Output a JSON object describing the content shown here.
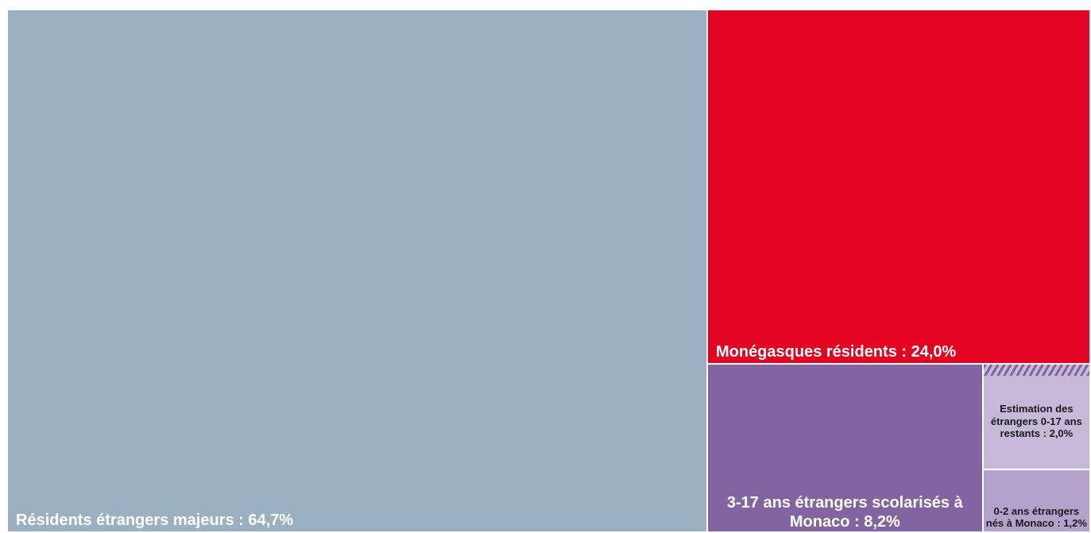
{
  "chart_data": {
    "type": "treemap",
    "categories": [
      "Résidents étrangers majeurs : 64,7%",
      "Monégasques résidents : 24,0%",
      "3-17 ans étrangers scolarisés à Monaco : 8,2%",
      "Estimation des étrangers 0-17 ans restants : 2,0%",
      "0-2 ans étrangers nés à Monaco : 1,2%"
    ],
    "values": [
      64.7,
      24.0,
      8.2,
      2.0,
      1.2
    ],
    "colors": [
      "#9bb0c1",
      "#e30421",
      "#8264a1",
      "#c6b8d9",
      "#b3a2cb"
    ]
  }
}
